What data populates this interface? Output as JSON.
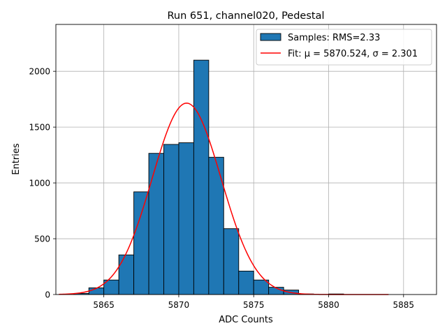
{
  "chart_data": {
    "type": "histogram",
    "title": "Run 651, channel020, Pedestal",
    "xlabel": "ADC Counts",
    "ylabel": "Entries",
    "xlim": [
      5861.8,
      5887.2
    ],
    "ylim": [
      0,
      2420
    ],
    "xticks": [
      5865,
      5870,
      5875,
      5880,
      5885
    ],
    "yticks": [
      0,
      500,
      1000,
      1500,
      2000
    ],
    "grid": true,
    "bins": {
      "edges": [
        5863,
        5864,
        5865,
        5866,
        5867,
        5868,
        5869,
        5870,
        5871,
        5872,
        5873,
        5874,
        5875,
        5876,
        5877,
        5878,
        5879,
        5880,
        5881
      ],
      "counts": [
        10,
        60,
        130,
        355,
        920,
        1265,
        1345,
        1360,
        2100,
        1230,
        590,
        210,
        130,
        65,
        40,
        5,
        0,
        5
      ]
    },
    "fit": {
      "type": "gaussian",
      "mu": 5870.524,
      "sigma": 2.301,
      "amplitude": 1715,
      "x_range": [
        5862,
        5884
      ]
    },
    "legend": {
      "position": "top-right",
      "entries": [
        {
          "label": "Samples: RMS=2.33",
          "kind": "patch"
        },
        {
          "label": "Fit: μ = 5870.524, σ = 2.301",
          "kind": "line"
        }
      ]
    },
    "colors": {
      "bar": "#1f77b4",
      "bar_edge": "#000000",
      "fit_line": "#ff0000",
      "grid": "#b0b0b0"
    }
  }
}
